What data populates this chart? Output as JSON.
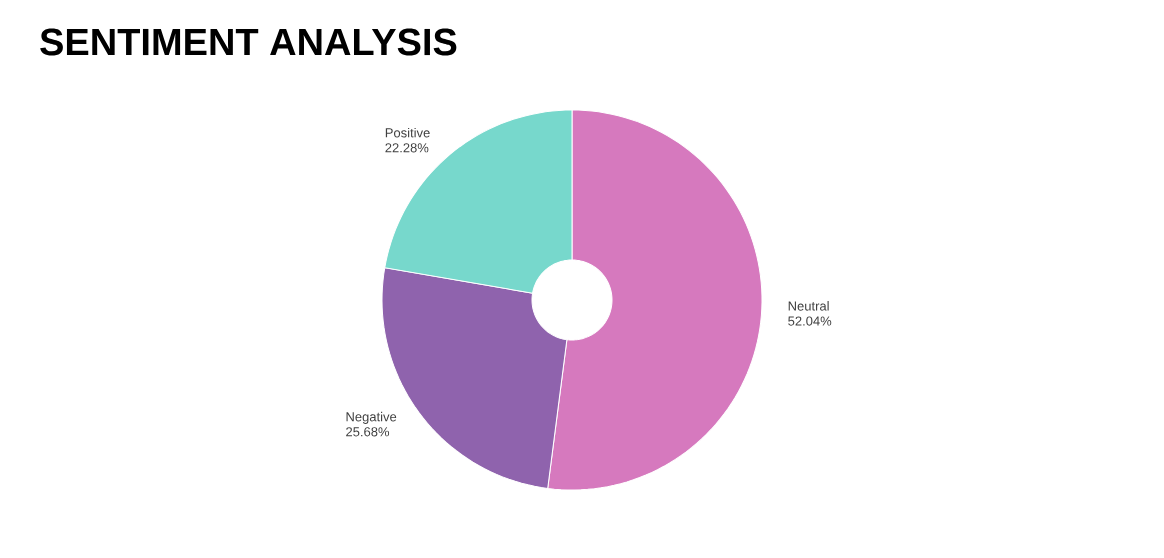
{
  "chart_data": {
    "type": "donut",
    "title": "SENTIMENT ANALYSIS",
    "categories": [
      "Neutral",
      "Negative",
      "Positive"
    ],
    "values": [
      52.04,
      25.68,
      22.28
    ],
    "value_labels": [
      "52.04%",
      "25.68%",
      "22.28%"
    ],
    "colors": [
      "#d679be",
      "#8f63ad",
      "#77d8cc"
    ]
  }
}
